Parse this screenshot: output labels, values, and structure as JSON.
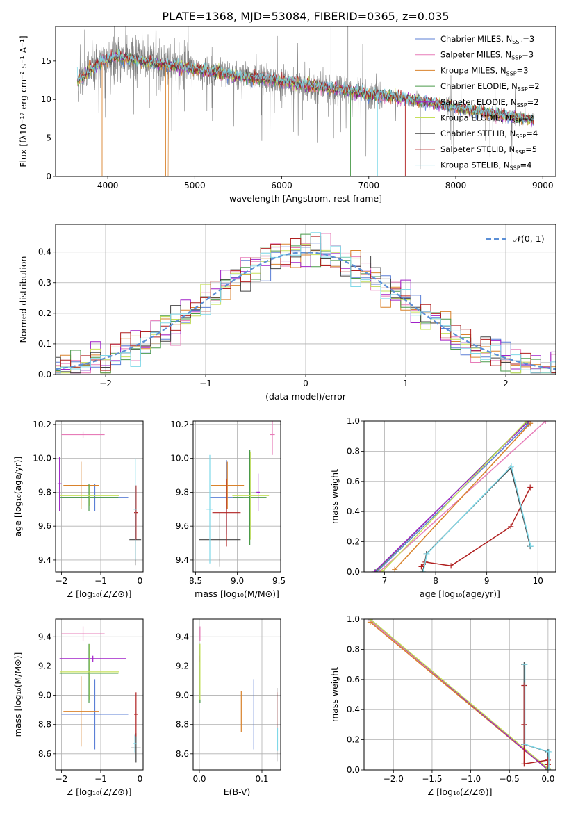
{
  "figure": {
    "title": "PLATE=1368, MJD=53084, FIBERID=0365, z=0.035"
  },
  "series": [
    {
      "name": "Chabrier MILES, N$_{SSP}$=3",
      "legend_main": "Chabrier MILES, N",
      "legend_sub": "SSP",
      "legend_tail": "=3",
      "color": "#5b7fd6"
    },
    {
      "name": "Salpeter MILES, N$_{SSP}$=3",
      "legend_main": "Salpeter MILES, N",
      "legend_sub": "SSP",
      "legend_tail": "=3",
      "color": "#e77cb8"
    },
    {
      "name": "Kroupa MILES, N$_{SSP}$=3",
      "legend_main": "Kroupa MILES, N",
      "legend_sub": "SSP",
      "legend_tail": "=3",
      "color": "#d9822b"
    },
    {
      "name": "Chabrier ELODIE, N$_{SSP}$=2",
      "legend_main": "Chabrier ELODIE, N",
      "legend_sub": "SSP",
      "legend_tail": "=2",
      "color": "#4a9a4a"
    },
    {
      "name": "Salpeter ELODIE, N$_{SSP}$=2",
      "legend_main": "Salpeter ELODIE, N",
      "legend_sub": "SSP",
      "legend_tail": "=2",
      "color": "#a020c8"
    },
    {
      "name": "Kroupa ELODIE, N$_{SSP}$=2",
      "legend_main": "Kroupa ELODIE, N",
      "legend_sub": "SSP",
      "legend_tail": "=2",
      "color": "#c6e05a"
    },
    {
      "name": "Chabrier STELIB, N$_{SSP}$=4",
      "legend_main": "Chabrier STELIB, N",
      "legend_sub": "SSP",
      "legend_tail": "=4",
      "color": "#444444"
    },
    {
      "name": "Salpeter STELIB, N$_{SSP}$=5",
      "legend_main": "Salpeter STELIB, N",
      "legend_sub": "SSP",
      "legend_tail": "=5",
      "color": "#b02020"
    },
    {
      "name": "Kroupa STELIB, N$_{SSP}$=4",
      "legend_main": "Kroupa STELIB, N",
      "legend_sub": "SSP",
      "legend_tail": "=4",
      "color": "#7fd8e8"
    }
  ],
  "chart_data": [
    {
      "id": "spectrum",
      "type": "line",
      "xlabel": "wavelength [Angstrom, rest frame]",
      "ylabel": "Flux [f$_\\lambda$10$^{-17}$ erg cm$^{-2}$ s$^{-1}$ A$^{-1}$]",
      "ylabel_display": "Flux [fλ10⁻¹⁷ erg cm⁻² s⁻¹ A⁻¹]",
      "xlim": [
        3400,
        9150
      ],
      "ylim": [
        0,
        19.5
      ],
      "xticks": [
        4000,
        5000,
        6000,
        7000,
        8000,
        9000
      ],
      "yticks": [
        0,
        5,
        10,
        15
      ],
      "data_color": "#808080",
      "continuum": {
        "x": [
          3650,
          3700,
          3800,
          3900,
          4000,
          4100,
          4200,
          4300,
          4400,
          4500,
          4600,
          4700,
          4800,
          4900,
          5000,
          5200,
          5400,
          5600,
          5800,
          6000,
          6200,
          6400,
          6600,
          6800,
          7000,
          7200,
          7400,
          7600,
          7800,
          8000,
          8200,
          8400,
          8600,
          8800,
          8900
        ],
        "y": [
          12.5,
          12.8,
          13.8,
          14.6,
          15.3,
          15.6,
          15.4,
          15.1,
          15.0,
          14.8,
          14.6,
          14.4,
          14.3,
          14.1,
          13.9,
          13.6,
          13.2,
          12.9,
          12.6,
          12.3,
          12.0,
          11.7,
          11.4,
          11.1,
          10.7,
          10.4,
          10.1,
          9.8,
          9.4,
          9.0,
          8.6,
          8.2,
          7.8,
          7.5,
          7.3
        ]
      }
    },
    {
      "id": "residual-histogram",
      "type": "line",
      "xlabel": "(data-model)/error",
      "ylabel": "Normed distribution",
      "xlim": [
        -2.5,
        2.5
      ],
      "ylim": [
        0,
        0.49
      ],
      "xticks": [
        -2,
        -1,
        0,
        1,
        2
      ],
      "yticks": [
        0.0,
        0.1,
        0.2,
        0.3,
        0.4
      ],
      "reference": {
        "name": "$\\mathcal{N}(0, 1)$",
        "legend_display": "𝒩(0, 1)",
        "color": "#5b8fd6",
        "mean": 0,
        "sigma": 1
      }
    },
    {
      "id": "age-vs-Z",
      "type": "scatter",
      "xlabel": "Z [log$_{10}$(Z/Z$_\\odot$)]",
      "xlabel_display": "Z [log₁₀(Z/Z⊙)]",
      "ylabel": "age  [log$_{10}$(age/yr)]",
      "ylabel_display": "age  [log₁₀(age/yr)]",
      "xlim": [
        -2.15,
        0.08
      ],
      "ylim": [
        9.33,
        10.22
      ],
      "xticks": [
        -2,
        -1,
        0
      ],
      "yticks": [
        9.4,
        9.6,
        9.8,
        10.0,
        10.2
      ],
      "points": [
        {
          "s": 0,
          "x": -1.15,
          "xerr": 0.85,
          "y": 9.77,
          "yerr": 0.08
        },
        {
          "s": 1,
          "x": -1.45,
          "xerr": 0.55,
          "y": 10.14,
          "yerr": 0.02
        },
        {
          "s": 2,
          "x": -1.5,
          "xerr": 0.45,
          "y": 9.84,
          "yerr": 0.14
        },
        {
          "s": 3,
          "x": -1.3,
          "xerr": 0.75,
          "y": 9.77,
          "yerr": 0.08
        },
        {
          "s": 4,
          "x": -2.05,
          "xerr": 0.05,
          "y": 9.85,
          "yerr": 0.16
        },
        {
          "s": 5,
          "x": -1.28,
          "xerr": 0.75,
          "y": 9.78,
          "yerr": 0.06
        },
        {
          "s": 6,
          "x": -0.12,
          "xerr": 0.15,
          "y": 9.52,
          "yerr": 0.15
        },
        {
          "s": 7,
          "x": -0.1,
          "xerr": 0.05,
          "y": 9.68,
          "yerr": 0.16
        },
        {
          "s": 8,
          "x": -0.12,
          "xerr": 0.04,
          "y": 9.7,
          "yerr": 0.3
        }
      ]
    },
    {
      "id": "age-vs-mass",
      "type": "scatter",
      "xlabel": "mass [log$_{10}$(M/M$_\\odot$)]",
      "xlabel_display": "mass [log₁₀(M/M⊙)]",
      "ylabel": "",
      "xlim": [
        8.47,
        9.52
      ],
      "ylim": [
        9.33,
        10.22
      ],
      "xticks": [
        8.5,
        9.0,
        9.5
      ],
      "yticks": [
        9.4,
        9.6,
        9.8,
        10.0,
        10.2
      ],
      "points": [
        {
          "s": 0,
          "x": 8.87,
          "xerr": 0.2,
          "y": 9.77,
          "yerr": 0.22
        },
        {
          "s": 1,
          "x": 9.42,
          "xerr": 0.03,
          "y": 10.14,
          "yerr": 0.12
        },
        {
          "s": 2,
          "x": 8.88,
          "xerr": 0.2,
          "y": 9.84,
          "yerr": 0.14
        },
        {
          "s": 3,
          "x": 9.15,
          "xerr": 0.2,
          "y": 9.77,
          "yerr": 0.28
        },
        {
          "s": 4,
          "x": 9.25,
          "xerr": 0.02,
          "y": 9.8,
          "yerr": 0.11
        },
        {
          "s": 5,
          "x": 9.16,
          "xerr": 0.22,
          "y": 9.78,
          "yerr": 0.26
        },
        {
          "s": 6,
          "x": 8.79,
          "xerr": 0.25,
          "y": 9.52,
          "yerr": 0.16
        },
        {
          "s": 7,
          "x": 8.87,
          "xerr": 0.17,
          "y": 9.68,
          "yerr": 0.2
        },
        {
          "s": 8,
          "x": 8.67,
          "xerr": 0.04,
          "y": 9.7,
          "yerr": 0.32
        }
      ]
    },
    {
      "id": "massweight-vs-age",
      "type": "line",
      "xlabel": "age  [log$_{10}$(age/yr)]",
      "xlabel_display": "age  [log₁₀(age/yr)]",
      "ylabel": "mass weight",
      "xlim": [
        6.6,
        10.35
      ],
      "ylim": [
        0,
        1.0
      ],
      "xticks": [
        7,
        8,
        9,
        10
      ],
      "yticks": [
        0.0,
        0.2,
        0.4,
        0.6,
        0.8,
        1.0
      ],
      "lines": [
        {
          "s": 0,
          "x": [
            6.85,
            9.81
          ],
          "y": [
            0.0,
            0.98
          ]
        },
        {
          "s": 1,
          "x": [
            6.9,
            10.15
          ],
          "y": [
            0.0,
            1.0
          ]
        },
        {
          "s": 2,
          "x": [
            7.2,
            9.85
          ],
          "y": [
            0.015,
            0.985
          ]
        },
        {
          "s": 3,
          "x": [
            6.82,
            9.8
          ],
          "y": [
            0.0,
            1.0
          ]
        },
        {
          "s": 4,
          "x": [
            6.8,
            9.82
          ],
          "y": [
            0.0,
            1.0
          ]
        },
        {
          "s": 5,
          "x": [
            6.95,
            9.78
          ],
          "y": [
            0.0,
            1.0
          ]
        },
        {
          "s": 6,
          "x": [
            7.75,
            7.82,
            9.47,
            9.85
          ],
          "y": [
            0.0,
            0.12,
            0.69,
            0.17
          ]
        },
        {
          "s": 7,
          "x": [
            7.72,
            7.8,
            8.3,
            9.47,
            9.85
          ],
          "y": [
            0.035,
            0.065,
            0.04,
            0.3,
            0.56
          ]
        },
        {
          "s": 8,
          "x": [
            7.76,
            7.83,
            9.48,
            9.86
          ],
          "y": [
            0.0,
            0.12,
            0.7,
            0.17
          ]
        }
      ]
    },
    {
      "id": "mass-vs-Z",
      "type": "scatter",
      "xlabel": "Z [log$_{10}$(Z/Z$_\\odot$)]",
      "xlabel_display": "Z [log₁₀(Z/Z⊙)]",
      "ylabel": "mass [log$_{10}$(M/M$_\\odot$)]",
      "ylabel_display": "mass [log₁₀(M/M⊙)]",
      "xlim": [
        -2.15,
        0.08
      ],
      "ylim": [
        8.49,
        9.52
      ],
      "xticks": [
        -2,
        -1,
        0
      ],
      "yticks": [
        8.6,
        8.8,
        9.0,
        9.2,
        9.4
      ],
      "points": [
        {
          "s": 0,
          "x": -1.15,
          "xerr": 0.85,
          "y": 8.87,
          "yerr": 0.24
        },
        {
          "s": 1,
          "x": -1.45,
          "xerr": 0.55,
          "y": 9.42,
          "yerr": 0.05
        },
        {
          "s": 2,
          "x": -1.5,
          "xerr": 0.45,
          "y": 8.89,
          "yerr": 0.24
        },
        {
          "s": 3,
          "x": -1.3,
          "xerr": 0.75,
          "y": 9.15,
          "yerr": 0.2
        },
        {
          "s": 4,
          "x": -1.2,
          "xerr": 0.85,
          "y": 9.25,
          "yerr": 0.02
        },
        {
          "s": 5,
          "x": -1.28,
          "xerr": 0.75,
          "y": 9.16,
          "yerr": 0.19
        },
        {
          "s": 6,
          "x": -0.1,
          "xerr": 0.12,
          "y": 8.64,
          "yerr": 0.1
        },
        {
          "s": 7,
          "x": -0.1,
          "xerr": 0.05,
          "y": 8.87,
          "yerr": 0.15
        },
        {
          "s": 8,
          "x": -0.13,
          "xerr": 0.05,
          "y": 8.67,
          "yerr": 0.06
        }
      ]
    },
    {
      "id": "mass-vs-EBV",
      "type": "scatter",
      "xlabel": "E(B-V)",
      "ylabel": "",
      "xlim": [
        -0.01,
        0.13
      ],
      "ylim": [
        8.49,
        9.52
      ],
      "xticks": [
        0.0,
        0.1
      ],
      "yticks": [
        8.6,
        8.8,
        9.0,
        9.2,
        9.4
      ],
      "points": [
        {
          "s": 0,
          "x": 0.087,
          "y": 8.87,
          "yerr": 0.24
        },
        {
          "s": 1,
          "x": 0.001,
          "y": 9.42,
          "yerr": 0.05
        },
        {
          "s": 2,
          "x": 0.067,
          "y": 8.89,
          "yerr": 0.14
        },
        {
          "s": 3,
          "x": 0.001,
          "y": 9.15,
          "yerr": 0.2
        },
        {
          "s": 4,
          "x": 0.001,
          "y": 9.25,
          "yerr": 0.02
        },
        {
          "s": 5,
          "x": 0.001,
          "y": 9.16,
          "yerr": 0.19
        },
        {
          "s": 6,
          "x": 0.124,
          "y": 8.8,
          "yerr": 0.25
        },
        {
          "s": 7,
          "x": 0.124,
          "y": 8.87,
          "yerr": 0.15
        },
        {
          "s": 8,
          "x": 0.125,
          "y": 8.7,
          "yerr": 0.08
        }
      ]
    },
    {
      "id": "massweight-vs-Z",
      "type": "line",
      "xlabel": "Z [log$_{10}$(Z/Z$_\\odot$)]",
      "xlabel_display": "Z [log₁₀(Z/Z⊙)]",
      "ylabel": "mass weight",
      "xlim": [
        -2.38,
        0.1
      ],
      "ylim": [
        0,
        1.0
      ],
      "xticks": [
        -2.0,
        -1.5,
        -1.0,
        -0.5,
        0.0
      ],
      "yticks": [
        0.0,
        0.2,
        0.4,
        0.6,
        0.8,
        1.0
      ],
      "lines": [
        {
          "s": 0,
          "x": [
            -2.3,
            0.0
          ],
          "y": [
            0.99,
            0.0
          ]
        },
        {
          "s": 1,
          "x": [
            -2.3,
            0.0
          ],
          "y": [
            0.99,
            0.0
          ]
        },
        {
          "s": 2,
          "x": [
            -2.3,
            0.0
          ],
          "y": [
            0.98,
            0.0
          ]
        },
        {
          "s": 3,
          "x": [
            -2.3,
            0.0
          ],
          "y": [
            1.0,
            0.0
          ]
        },
        {
          "s": 4,
          "x": [
            -2.3,
            0.0
          ],
          "y": [
            1.0,
            0.0
          ]
        },
        {
          "s": 5,
          "x": [
            -2.3,
            0.0
          ],
          "y": [
            1.0,
            0.01
          ]
        },
        {
          "s": 6,
          "x": [
            -0.31,
            -0.31,
            0.0,
            0.0
          ],
          "y": [
            0.7,
            0.17,
            0.12,
            0.0
          ]
        },
        {
          "s": 7,
          "x": [
            -0.31,
            -0.31,
            -0.31,
            0.0,
            0.0
          ],
          "y": [
            0.56,
            0.3,
            0.04,
            0.065,
            0.035
          ]
        },
        {
          "s": 8,
          "x": [
            -0.3,
            -0.3,
            0.01,
            0.01
          ],
          "y": [
            0.7,
            0.17,
            0.12,
            0.0
          ]
        }
      ]
    }
  ]
}
